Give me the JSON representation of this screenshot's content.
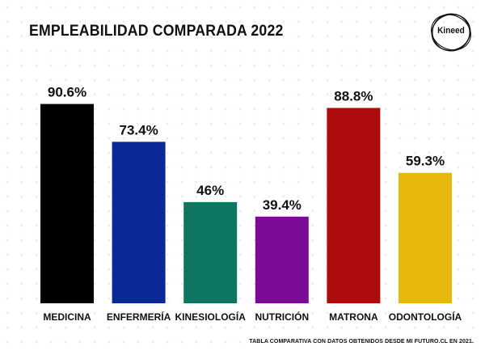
{
  "header": {
    "title": "EMPLEABILIDAD COMPARADA 2022"
  },
  "logo": {
    "text": "Kineed",
    "icon": "kineed-logo-icon"
  },
  "footnote": "TABLA COMPARATIVA CON DATOS OBTENIDOS DESDE MI FUTURO.CL EN 2021.",
  "chart_data": {
    "type": "bar",
    "title": "EMPLEABILIDAD COMPARADA 2022",
    "xlabel": "",
    "ylabel": "",
    "ylim": [
      0,
      100
    ],
    "grid": false,
    "legend": "none",
    "categories": [
      "MEDICINA",
      "ENFERMERÍA",
      "KINESIOLOGÍA",
      "NUTRICIÓN",
      "MATRONA",
      "ODONTOLOGÍA"
    ],
    "values": [
      90.6,
      73.4,
      46,
      39.4,
      88.8,
      59.3
    ],
    "data_labels": [
      "90.6%",
      "73.4%",
      "46%",
      "39.4%",
      "88.8%",
      "59.3%"
    ],
    "colors": [
      "#000000",
      "#0a2996",
      "#0d7560",
      "#7b0b96",
      "#ad0c0c",
      "#e6b70c"
    ]
  }
}
